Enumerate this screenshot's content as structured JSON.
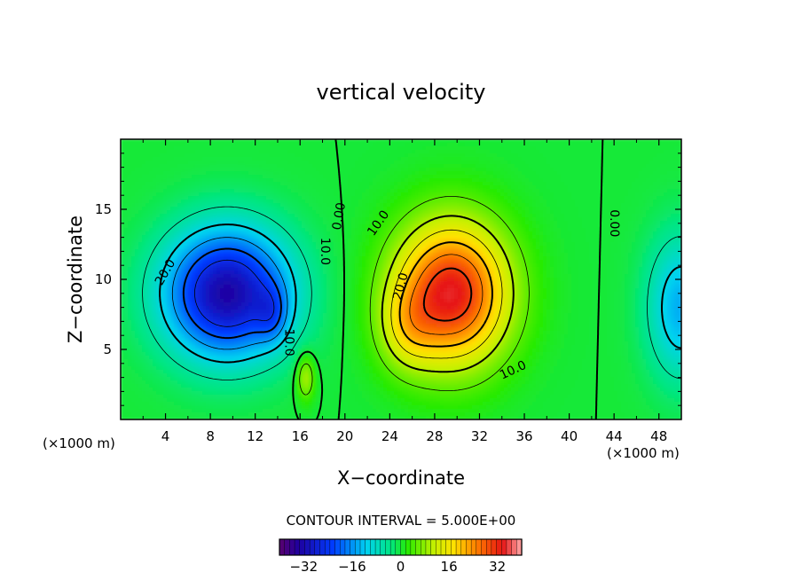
{
  "chart_data": {
    "type": "heatmap",
    "title": "vertical velocity",
    "xlabel": "X−coordinate",
    "ylabel": "Z−coordinate",
    "x_unit_left": "(×1000 m)",
    "x_unit_right": "(×1000 m)",
    "xlim": [
      0,
      50
    ],
    "ylim": [
      0,
      20
    ],
    "x_ticks": [
      4,
      8,
      12,
      16,
      20,
      24,
      28,
      32,
      36,
      40,
      44,
      48
    ],
    "y_ticks": [
      5,
      10,
      15
    ],
    "contour_interval_text": "CONTOUR INTERVAL = 5.000E+00",
    "colorbar": {
      "min": -40,
      "max": 40,
      "ticks": [
        -32,
        -16,
        0,
        16,
        32
      ],
      "tick_labels": [
        "−32",
        "−16",
        "0",
        "16",
        "32"
      ]
    },
    "cells": [
      {
        "x": 9.5,
        "z": 9.0,
        "sx": 5.5,
        "sz": 4.5,
        "amp": -33
      },
      {
        "x": 13.5,
        "z": 7.5,
        "sx": 1.4,
        "sz": 2.0,
        "amp": -8
      },
      {
        "x": 16.5,
        "z": 3.0,
        "sx": 0.8,
        "sz": 1.6,
        "amp": 10
      },
      {
        "x": 29.5,
        "z": 9.0,
        "sx": 5.0,
        "sz": 5.0,
        "amp": 34
      },
      {
        "x": 25.5,
        "z": 6.5,
        "sx": 2.5,
        "sz": 3.0,
        "amp": 8
      },
      {
        "x": 50.0,
        "z": 8.0,
        "sx": 3.0,
        "sz": 5.0,
        "amp": -14
      }
    ],
    "contour_labels": [
      {
        "text": "20.0",
        "x": 4.0,
        "z": 10.5,
        "rot": -60
      },
      {
        "text": "10.0",
        "x": 15.0,
        "z": 5.5,
        "rot": 90
      },
      {
        "text": "0.00",
        "x": 19.5,
        "z": 14.5,
        "rot": -80
      },
      {
        "text": "10.0",
        "x": 18.2,
        "z": 12.0,
        "rot": 90
      },
      {
        "text": "10.0",
        "x": 23.0,
        "z": 14.0,
        "rot": -55
      },
      {
        "text": "20.0",
        "x": 25.0,
        "z": 9.5,
        "rot": -75
      },
      {
        "text": "10.0",
        "x": 35.0,
        "z": 3.5,
        "rot": -25
      },
      {
        "text": "0.00",
        "x": 44.0,
        "z": 14.0,
        "rot": 90
      }
    ]
  }
}
